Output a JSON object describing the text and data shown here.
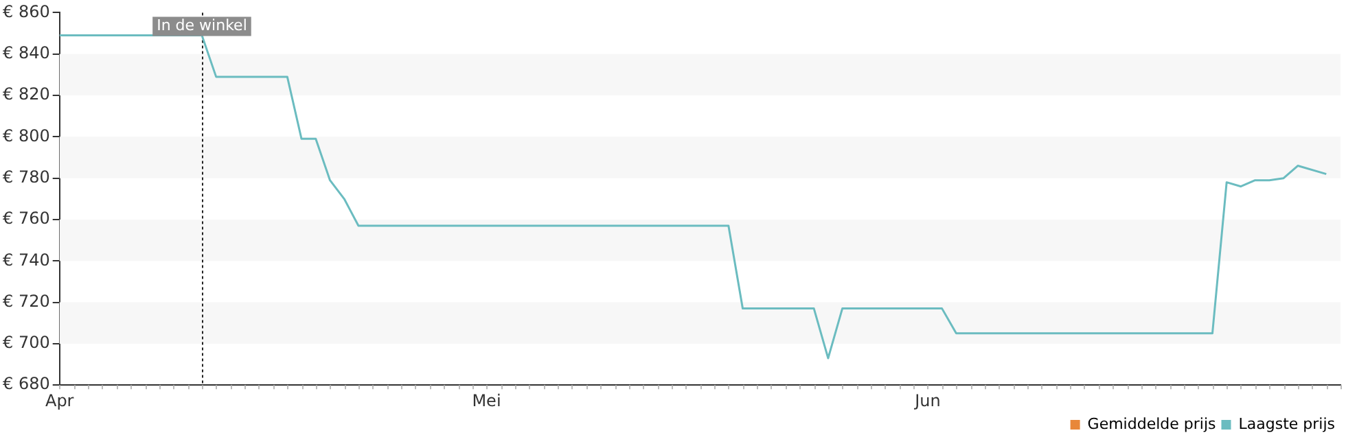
{
  "chart_data": {
    "type": "line",
    "x": [
      "--04-01",
      "--04-11",
      "--04-12",
      "--04-17",
      "--04-18",
      "--04-19",
      "--04-20",
      "--04-21",
      "--04-22",
      "--05-18",
      "--05-19",
      "--05-24",
      "--05-25",
      "--05-26",
      "--06-02",
      "--06-03",
      "--06-21",
      "--06-22",
      "--06-23",
      "--06-24",
      "--06-25",
      "--06-26",
      "--06-27",
      "--06-29"
    ],
    "series": [
      {
        "name": "Gemiddelde prijs",
        "color": "#e8873a",
        "values": [
          null,
          null,
          null,
          null,
          null,
          null,
          null,
          null,
          null,
          null,
          null,
          null,
          null,
          null,
          null,
          null,
          null,
          null,
          null,
          null,
          null,
          null,
          null,
          null
        ]
      },
      {
        "name": "Laagste prijs",
        "color": "#6bbcc0",
        "values": [
          849,
          849,
          829,
          829,
          799,
          799,
          779,
          770,
          757,
          757,
          717,
          717,
          693,
          717,
          717,
          705,
          705,
          778,
          776,
          779,
          779,
          780,
          786,
          782
        ]
      }
    ],
    "xlim": [
      "--04-01",
      "--06-30"
    ],
    "xticks": [
      {
        "value": "--04-01",
        "label": "Apr"
      },
      {
        "value": "--05-01",
        "label": "Mei"
      },
      {
        "value": "--06-01",
        "label": "Jun"
      }
    ],
    "ylim": [
      680,
      860
    ],
    "yticks": [
      {
        "value": 680,
        "label": "€ 680"
      },
      {
        "value": 700,
        "label": "€ 700"
      },
      {
        "value": 720,
        "label": "€ 720"
      },
      {
        "value": 740,
        "label": "€ 740"
      },
      {
        "value": 760,
        "label": "€ 760"
      },
      {
        "value": 780,
        "label": "€ 780"
      },
      {
        "value": 800,
        "label": "€ 800"
      },
      {
        "value": 820,
        "label": "€ 820"
      },
      {
        "value": 840,
        "label": "€ 840"
      },
      {
        "value": 860,
        "label": "€ 860"
      }
    ],
    "bands": [
      {
        "axis": "y",
        "from": 700,
        "to": 720,
        "color": "#f7f7f7"
      },
      {
        "axis": "y",
        "from": 740,
        "to": 760,
        "color": "#f7f7f7"
      },
      {
        "axis": "y",
        "from": 780,
        "to": 800,
        "color": "#f7f7f7"
      },
      {
        "axis": "y",
        "from": 820,
        "to": 840,
        "color": "#f7f7f7"
      }
    ],
    "ref_lines": [
      {
        "axis": "x",
        "value": "--04-11",
        "label": "In de winkel",
        "color": "#222222",
        "line_style": "dotted"
      }
    ],
    "legend": "bottom right",
    "marker": "none",
    "line_style": "solid"
  }
}
